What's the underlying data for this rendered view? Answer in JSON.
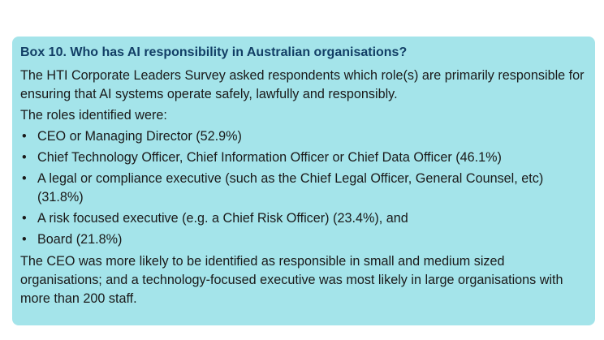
{
  "box": {
    "title": "Box 10. Who has AI responsibility in Australian organisations?",
    "intro": "The HTI Corporate Leaders Survey asked respondents which role(s) are primarily responsible for ensuring that AI systems operate safely, lawfully and responsibly.",
    "lead_in": "The roles identified were:",
    "bullet_glyph": "•",
    "roles": [
      "CEO or Managing Director (52.9%)",
      "Chief Technology Officer, Chief Information Officer or Chief Data Officer (46.1%)",
      "A legal or compliance executive (such as the Chief Legal Officer, General Counsel, etc) (31.8%)",
      "A risk focused executive (e.g. a Chief Risk Officer) (23.4%), and",
      "Board (21.8%)"
    ],
    "conclusion": "The CEO was more likely to be identified as responsible in small and medium sized organisations; and a technology-focused executive was most likely in large organisations with more than 200 staff.",
    "background_color": "#a4e4ea",
    "title_color": "#123f66"
  }
}
